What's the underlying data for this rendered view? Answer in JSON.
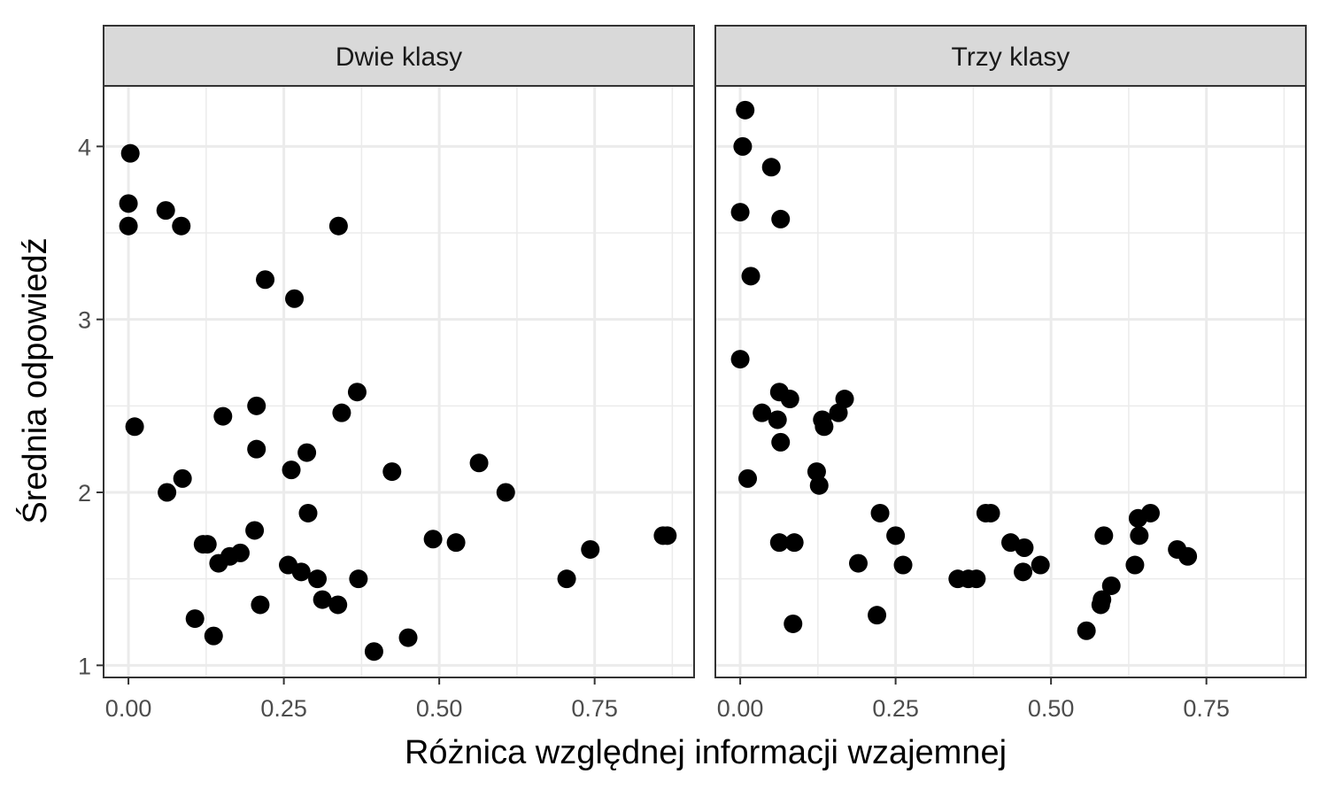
{
  "chart_data": {
    "type": "scatter",
    "xlabel": "Różnica względnej informacji wzajemnej",
    "ylabel": "Średnia odpowiedź",
    "xlim": [
      -0.04,
      0.91
    ],
    "ylim": [
      0.93,
      4.35
    ],
    "x_ticks": [
      0,
      0.25,
      0.5,
      0.75
    ],
    "x_tick_labels": [
      "0.00",
      "0.25",
      "0.50",
      "0.75"
    ],
    "y_ticks": [
      1,
      2,
      3,
      4
    ],
    "y_tick_labels": [
      "1",
      "2",
      "3",
      "4"
    ],
    "grid": true,
    "legend": "none",
    "panels": [
      {
        "strip": "Dwie klasy",
        "points": [
          {
            "x": 0.003,
            "y": 3.96
          },
          {
            "x": 0.0,
            "y": 3.67
          },
          {
            "x": 0.0,
            "y": 3.54
          },
          {
            "x": 0.01,
            "y": 2.38
          },
          {
            "x": 0.06,
            "y": 3.63
          },
          {
            "x": 0.085,
            "y": 3.54
          },
          {
            "x": 0.062,
            "y": 2.0
          },
          {
            "x": 0.087,
            "y": 2.08
          },
          {
            "x": 0.107,
            "y": 1.27
          },
          {
            "x": 0.12,
            "y": 1.7
          },
          {
            "x": 0.127,
            "y": 1.7
          },
          {
            "x": 0.137,
            "y": 1.17
          },
          {
            "x": 0.145,
            "y": 1.59
          },
          {
            "x": 0.152,
            "y": 2.44
          },
          {
            "x": 0.163,
            "y": 1.63
          },
          {
            "x": 0.18,
            "y": 1.65
          },
          {
            "x": 0.203,
            "y": 1.78
          },
          {
            "x": 0.206,
            "y": 2.5
          },
          {
            "x": 0.206,
            "y": 2.25
          },
          {
            "x": 0.212,
            "y": 1.35
          },
          {
            "x": 0.22,
            "y": 3.23
          },
          {
            "x": 0.257,
            "y": 1.58
          },
          {
            "x": 0.262,
            "y": 2.13
          },
          {
            "x": 0.267,
            "y": 3.12
          },
          {
            "x": 0.278,
            "y": 1.54
          },
          {
            "x": 0.287,
            "y": 2.23
          },
          {
            "x": 0.289,
            "y": 1.88
          },
          {
            "x": 0.304,
            "y": 1.5
          },
          {
            "x": 0.312,
            "y": 1.38
          },
          {
            "x": 0.337,
            "y": 1.35
          },
          {
            "x": 0.338,
            "y": 3.54
          },
          {
            "x": 0.343,
            "y": 2.46
          },
          {
            "x": 0.368,
            "y": 2.58
          },
          {
            "x": 0.37,
            "y": 1.5
          },
          {
            "x": 0.395,
            "y": 1.08
          },
          {
            "x": 0.424,
            "y": 2.12
          },
          {
            "x": 0.45,
            "y": 1.16
          },
          {
            "x": 0.49,
            "y": 1.73
          },
          {
            "x": 0.527,
            "y": 1.71
          },
          {
            "x": 0.564,
            "y": 2.17
          },
          {
            "x": 0.607,
            "y": 2.0
          },
          {
            "x": 0.705,
            "y": 1.5
          },
          {
            "x": 0.743,
            "y": 1.67
          },
          {
            "x": 0.86,
            "y": 1.75
          },
          {
            "x": 0.867,
            "y": 1.75
          }
        ]
      },
      {
        "strip": "Trzy klasy",
        "points": [
          {
            "x": 0.008,
            "y": 4.21
          },
          {
            "x": 0.004,
            "y": 4.0
          },
          {
            "x": 0.05,
            "y": 3.88
          },
          {
            "x": 0.0,
            "y": 3.62
          },
          {
            "x": 0.065,
            "y": 3.58
          },
          {
            "x": 0.017,
            "y": 3.25
          },
          {
            "x": 0.0,
            "y": 2.77
          },
          {
            "x": 0.063,
            "y": 2.58
          },
          {
            "x": 0.08,
            "y": 2.54
          },
          {
            "x": 0.035,
            "y": 2.46
          },
          {
            "x": 0.06,
            "y": 2.42
          },
          {
            "x": 0.065,
            "y": 2.29
          },
          {
            "x": 0.012,
            "y": 2.08
          },
          {
            "x": 0.132,
            "y": 2.42
          },
          {
            "x": 0.135,
            "y": 2.38
          },
          {
            "x": 0.158,
            "y": 2.46
          },
          {
            "x": 0.168,
            "y": 2.54
          },
          {
            "x": 0.123,
            "y": 2.12
          },
          {
            "x": 0.127,
            "y": 2.04
          },
          {
            "x": 0.063,
            "y": 1.71
          },
          {
            "x": 0.087,
            "y": 1.71
          },
          {
            "x": 0.085,
            "y": 1.24
          },
          {
            "x": 0.19,
            "y": 1.59
          },
          {
            "x": 0.22,
            "y": 1.29
          },
          {
            "x": 0.225,
            "y": 1.88
          },
          {
            "x": 0.25,
            "y": 1.75
          },
          {
            "x": 0.262,
            "y": 1.58
          },
          {
            "x": 0.35,
            "y": 1.5
          },
          {
            "x": 0.367,
            "y": 1.5
          },
          {
            "x": 0.38,
            "y": 1.5
          },
          {
            "x": 0.395,
            "y": 1.88
          },
          {
            "x": 0.403,
            "y": 1.88
          },
          {
            "x": 0.435,
            "y": 1.71
          },
          {
            "x": 0.457,
            "y": 1.68
          },
          {
            "x": 0.455,
            "y": 1.54
          },
          {
            "x": 0.483,
            "y": 1.58
          },
          {
            "x": 0.557,
            "y": 1.2
          },
          {
            "x": 0.58,
            "y": 1.35
          },
          {
            "x": 0.582,
            "y": 1.38
          },
          {
            "x": 0.585,
            "y": 1.75
          },
          {
            "x": 0.597,
            "y": 1.46
          },
          {
            "x": 0.635,
            "y": 1.58
          },
          {
            "x": 0.64,
            "y": 1.85
          },
          {
            "x": 0.642,
            "y": 1.75
          },
          {
            "x": 0.66,
            "y": 1.88
          },
          {
            "x": 0.703,
            "y": 1.67
          },
          {
            "x": 0.72,
            "y": 1.63
          }
        ]
      }
    ]
  }
}
